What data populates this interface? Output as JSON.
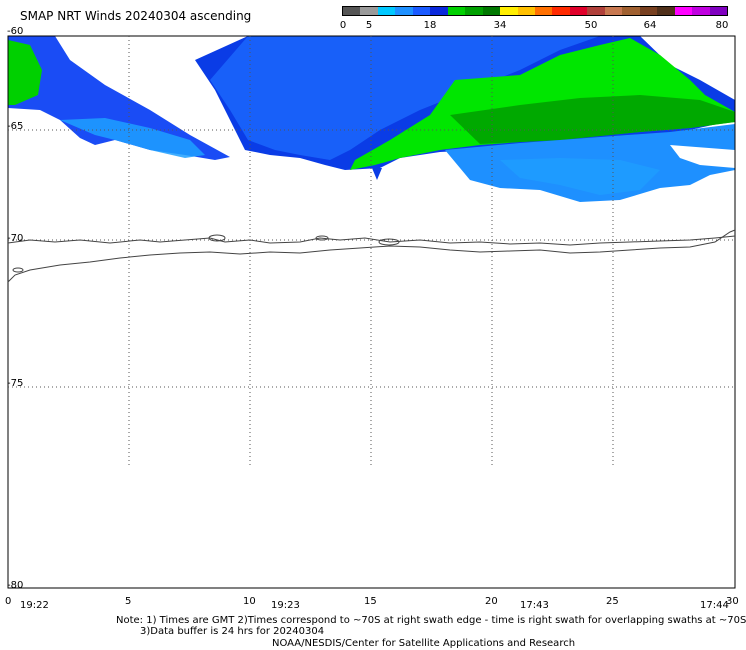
{
  "title": "SMAP NRT Winds 20240304 ascending",
  "colorbar": {
    "labels": [
      "0",
      "5",
      "18",
      "34",
      "50",
      "64",
      "80"
    ],
    "colors": [
      "#555555",
      "#9a9a9a",
      "#00c8ff",
      "#1e90ff",
      "#1a5aff",
      "#0a28dc",
      "#00d000",
      "#00a000",
      "#007800",
      "#ffee00",
      "#ffc000",
      "#ff7000",
      "#ff2a00",
      "#e0002a",
      "#b0403a",
      "#c87850",
      "#a06030",
      "#784020",
      "#50301a",
      "#ff00ff",
      "#c000e0",
      "#8000c0"
    ]
  },
  "map": {
    "lat_labels": [
      "-60",
      "-65",
      "-70",
      "-75",
      "-80"
    ],
    "lon_labels": [
      "0",
      "5",
      "10",
      "15",
      "20",
      "25",
      "30"
    ],
    "pass_times": [
      "19:22",
      "19:23",
      "17:43",
      "17:44"
    ]
  },
  "notes": {
    "line1": "Note: 1) Times are GMT 2)Times correspond to ~70S at right swath edge - time is right swath for overlapping swaths at ~70S",
    "line2": "3)Data buffer is 24 hrs for 20240304",
    "line3": "NOAA/NESDIS/Center for Satellite Applications and Research"
  },
  "legend_colors": {
    "calm_blue": "#1e6cff",
    "mod_blue": "#0a3ce6",
    "light_blue": "#1ea0ff",
    "green": "#00e600",
    "dark_green": "#009a00"
  }
}
